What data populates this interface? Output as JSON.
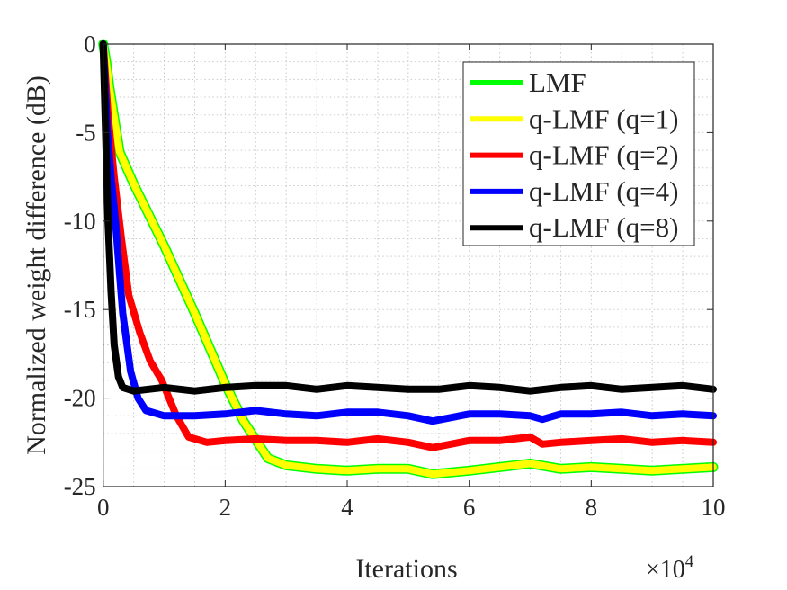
{
  "chart_data": {
    "type": "line",
    "title": "",
    "xlabel": "Iterations",
    "ylabel": "Normalized weight difference (dB)",
    "x_exponent_label": "×10",
    "x_exponent_power": "4",
    "xlim": [
      0,
      10
    ],
    "ylim": [
      -25,
      0
    ],
    "xticks": [
      "0",
      "2",
      "4",
      "6",
      "8",
      "10"
    ],
    "yticks": [
      "0",
      "-5",
      "-10",
      "-15",
      "-20",
      "-25"
    ],
    "grid": "on (major and minor, dotted)",
    "legend_position": "top-right",
    "series": [
      {
        "name": "LMF",
        "color": "#00ff00",
        "points": [
          [
            0,
            0
          ],
          [
            0.05,
            -1
          ],
          [
            0.1,
            -2.4
          ],
          [
            0.27,
            -6.1
          ],
          [
            0.5,
            -7.9
          ],
          [
            1,
            -11.4
          ],
          [
            1.5,
            -15.2
          ],
          [
            2,
            -19.2
          ],
          [
            2.3,
            -21.3
          ],
          [
            2.7,
            -23.4
          ],
          [
            3,
            -23.8
          ],
          [
            3.5,
            -24
          ],
          [
            4,
            -24.1
          ],
          [
            4.5,
            -24
          ],
          [
            5,
            -24
          ],
          [
            5.4,
            -24.3
          ],
          [
            6,
            -24.1
          ],
          [
            6.5,
            -23.9
          ],
          [
            7,
            -23.7
          ],
          [
            7.5,
            -24
          ],
          [
            8,
            -23.9
          ],
          [
            8.5,
            -24
          ],
          [
            9,
            -24.1
          ],
          [
            9.5,
            -24
          ],
          [
            10,
            -23.9
          ]
        ]
      },
      {
        "name": "q-LMF (q=1)",
        "color": "#ffff00",
        "points": [
          [
            0,
            0
          ],
          [
            0.05,
            -1
          ],
          [
            0.1,
            -2.4
          ],
          [
            0.27,
            -6.1
          ],
          [
            0.5,
            -7.9
          ],
          [
            1,
            -11.4
          ],
          [
            1.5,
            -15.2
          ],
          [
            2,
            -19.2
          ],
          [
            2.3,
            -21.3
          ],
          [
            2.7,
            -23.4
          ],
          [
            3,
            -23.8
          ],
          [
            3.5,
            -24
          ],
          [
            4,
            -24.1
          ],
          [
            4.5,
            -24
          ],
          [
            5,
            -24
          ],
          [
            5.4,
            -24.3
          ],
          [
            6,
            -24.1
          ],
          [
            6.5,
            -23.9
          ],
          [
            7,
            -23.7
          ],
          [
            7.5,
            -24
          ],
          [
            8,
            -23.9
          ],
          [
            8.5,
            -24
          ],
          [
            9,
            -24.1
          ],
          [
            9.5,
            -24
          ],
          [
            10,
            -23.9
          ]
        ]
      },
      {
        "name": "q-LMF (q=2)",
        "color": "#ff0000",
        "points": [
          [
            0,
            0
          ],
          [
            0.08,
            -4
          ],
          [
            0.18,
            -7.5
          ],
          [
            0.3,
            -11
          ],
          [
            0.42,
            -14.2
          ],
          [
            0.6,
            -16.3
          ],
          [
            0.77,
            -17.9
          ],
          [
            0.96,
            -19
          ],
          [
            1.2,
            -21
          ],
          [
            1.4,
            -22.2
          ],
          [
            1.7,
            -22.5
          ],
          [
            2,
            -22.4
          ],
          [
            2.5,
            -22.3
          ],
          [
            3,
            -22.4
          ],
          [
            3.5,
            -22.4
          ],
          [
            4,
            -22.5
          ],
          [
            4.5,
            -22.3
          ],
          [
            5,
            -22.5
          ],
          [
            5.4,
            -22.8
          ],
          [
            6,
            -22.4
          ],
          [
            6.5,
            -22.4
          ],
          [
            7,
            -22.2
          ],
          [
            7.2,
            -22.6
          ],
          [
            7.5,
            -22.5
          ],
          [
            8,
            -22.4
          ],
          [
            8.5,
            -22.3
          ],
          [
            9,
            -22.5
          ],
          [
            9.5,
            -22.4
          ],
          [
            10,
            -22.5
          ]
        ]
      },
      {
        "name": "q-LMF (q=4)",
        "color": "#0000ff",
        "points": [
          [
            0,
            0
          ],
          [
            0.07,
            -5
          ],
          [
            0.13,
            -7.5
          ],
          [
            0.2,
            -10
          ],
          [
            0.32,
            -15.2
          ],
          [
            0.45,
            -18.5
          ],
          [
            0.57,
            -20
          ],
          [
            0.7,
            -20.7
          ],
          [
            1,
            -21
          ],
          [
            1.5,
            -21
          ],
          [
            2,
            -20.9
          ],
          [
            2.5,
            -20.7
          ],
          [
            3,
            -20.9
          ],
          [
            3.5,
            -21
          ],
          [
            4,
            -20.8
          ],
          [
            4.5,
            -20.8
          ],
          [
            5,
            -21
          ],
          [
            5.4,
            -21.3
          ],
          [
            6,
            -20.9
          ],
          [
            6.5,
            -20.9
          ],
          [
            7,
            -21
          ],
          [
            7.2,
            -21.2
          ],
          [
            7.5,
            -20.9
          ],
          [
            8,
            -20.9
          ],
          [
            8.5,
            -20.8
          ],
          [
            9,
            -21
          ],
          [
            9.5,
            -20.9
          ],
          [
            10,
            -21
          ]
        ]
      },
      {
        "name": "q-LMF (q=8)",
        "color": "#000000",
        "points": [
          [
            0,
            0
          ],
          [
            0.04,
            -5
          ],
          [
            0.08,
            -10
          ],
          [
            0.13,
            -14
          ],
          [
            0.18,
            -17
          ],
          [
            0.25,
            -18.8
          ],
          [
            0.32,
            -19.4
          ],
          [
            0.5,
            -19.6
          ],
          [
            1,
            -19.4
          ],
          [
            1.5,
            -19.6
          ],
          [
            2,
            -19.4
          ],
          [
            2.5,
            -19.3
          ],
          [
            3,
            -19.3
          ],
          [
            3.5,
            -19.5
          ],
          [
            4,
            -19.3
          ],
          [
            4.5,
            -19.4
          ],
          [
            5,
            -19.5
          ],
          [
            5.5,
            -19.5
          ],
          [
            6,
            -19.3
          ],
          [
            6.5,
            -19.4
          ],
          [
            7,
            -19.6
          ],
          [
            7.5,
            -19.4
          ],
          [
            8,
            -19.3
          ],
          [
            8.5,
            -19.5
          ],
          [
            9,
            -19.4
          ],
          [
            9.5,
            -19.3
          ],
          [
            10,
            -19.5
          ]
        ]
      }
    ]
  }
}
